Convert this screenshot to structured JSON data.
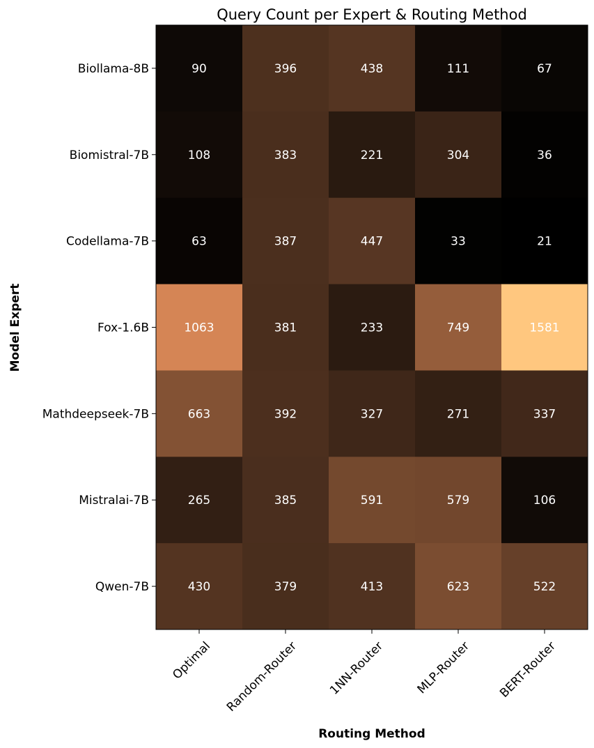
{
  "chart_data": {
    "type": "heatmap",
    "title": "Query Count per Expert & Routing Method",
    "xlabel": "Routing Method",
    "ylabel": "Model Expert",
    "colormap": "copper",
    "value_range": [
      21,
      1581
    ],
    "columns": [
      "Optimal",
      "Random-Router",
      "1NN-Router",
      "MLP-Router",
      "BERT-Router"
    ],
    "rows": [
      "Biollama-8B",
      "Biomistral-7B",
      "Codellama-7B",
      "Fox-1.6B",
      "Mathdeepseek-7B",
      "Mistralai-7B",
      "Qwen-7B"
    ],
    "values": [
      [
        90,
        396,
        438,
        111,
        67
      ],
      [
        108,
        383,
        221,
        304,
        36
      ],
      [
        63,
        387,
        447,
        33,
        21
      ],
      [
        1063,
        381,
        233,
        749,
        1581
      ],
      [
        663,
        392,
        327,
        271,
        337
      ],
      [
        265,
        385,
        591,
        579,
        106
      ],
      [
        430,
        379,
        413,
        623,
        522
      ]
    ],
    "grid": false,
    "colorbar": false
  }
}
